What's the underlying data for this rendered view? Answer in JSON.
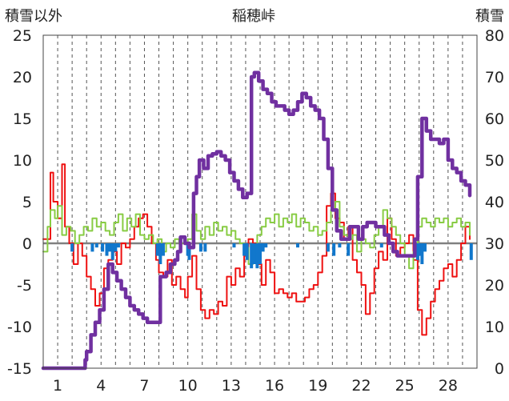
{
  "chart_data": {
    "type": "line",
    "title": "稲穂峠",
    "left_axis_label": "積雪以外",
    "right_axis_label": "積雪",
    "left_ylim": [
      -15,
      25
    ],
    "left_yticks": [
      25,
      20,
      15,
      10,
      5,
      0,
      -5,
      -10,
      -15
    ],
    "right_ylim": [
      0,
      80
    ],
    "right_yticks": [
      80,
      70,
      60,
      50,
      40,
      30,
      20,
      10,
      0
    ],
    "xlim": [
      0,
      30
    ],
    "x_tick_labels": [
      "1",
      "4",
      "7",
      "10",
      "13",
      "16",
      "19",
      "22",
      "25",
      "28"
    ],
    "x_tick_values": [
      1,
      4,
      7,
      10,
      13,
      16,
      19,
      22,
      25,
      28
    ],
    "grid": "vertical dashed lines",
    "colors": {
      "temperature": "#ee1111",
      "wind": "#88cc44",
      "precipitation": "#1177cc",
      "snow_depth": "#7030a0",
      "zero_line": "#808080",
      "grid": "#555555"
    },
    "series": [
      {
        "axis": "left",
        "x": [
          0.0,
          0.5,
          0.7,
          1.0,
          1.3,
          1.5,
          1.8,
          2.1,
          2.4,
          2.7,
          3.0,
          3.3,
          3.6,
          3.9,
          4.2,
          4.5,
          4.8,
          5.1,
          5.4,
          5.7,
          6.0,
          6.3,
          6.6,
          6.9,
          7.2,
          7.5,
          7.8,
          8.0,
          8.3,
          8.6,
          8.9,
          9.2,
          9.5,
          9.8,
          10.0,
          10.3,
          10.6,
          10.9,
          11.2,
          11.5,
          11.8,
          12.1,
          12.4,
          12.7,
          13.0,
          13.3,
          13.6,
          13.9,
          14.2,
          14.5,
          14.8,
          15.1,
          15.4,
          15.7,
          16.0,
          16.3,
          16.6,
          16.9,
          17.2,
          17.5,
          17.8,
          18.1,
          18.4,
          18.7,
          19.0,
          19.3,
          19.6,
          19.9,
          20.2,
          20.5,
          20.8,
          21.1,
          21.4,
          21.7,
          22.0,
          22.3,
          22.6,
          22.9,
          23.2,
          23.5,
          23.8,
          24.1,
          24.4,
          24.7,
          25.0,
          25.3,
          25.6,
          25.9,
          26.2,
          26.5,
          26.8,
          27.1,
          27.4,
          27.7,
          28.0,
          28.3,
          28.6,
          28.9,
          29.2,
          29.5
        ],
        "values": [
          0.5,
          8.5,
          5.0,
          3.0,
          9.5,
          2.0,
          0.0,
          -2.5,
          0.0,
          -1.5,
          -4.0,
          -5.5,
          -7.5,
          -6.0,
          -3.0,
          -2.0,
          -1.0,
          -2.5,
          0.0,
          -0.5,
          0.5,
          2.0,
          3.0,
          3.5,
          2.0,
          0.0,
          -2.0,
          -3.5,
          -4.0,
          -2.0,
          -5.0,
          -4.0,
          -5.5,
          -6.5,
          -4.0,
          -1.5,
          -5.5,
          -8.0,
          -9.0,
          -8.0,
          -8.5,
          -7.0,
          -7.5,
          -4.0,
          -5.0,
          -3.0,
          -4.0,
          -1.5,
          0.5,
          0.0,
          -2.5,
          -5.0,
          -2.0,
          -3.5,
          -6.0,
          -5.5,
          -6.0,
          -6.5,
          -6.0,
          -7.0,
          -7.0,
          -6.5,
          -5.5,
          -5.0,
          -3.5,
          -1.5,
          4.5,
          6.0,
          3.0,
          2.5,
          0.5,
          2.0,
          -2.0,
          -3.5,
          -5.0,
          -8.5,
          -6.0,
          -3.0,
          -1.0,
          -2.0,
          3.0,
          0.5,
          -1.5,
          -0.5,
          0.0,
          1.0,
          -2.0,
          -8.0,
          -11.0,
          -9.0,
          -7.0,
          -5.5,
          -4.5,
          -3.0,
          -2.5,
          -4.0,
          -2.0,
          0.0,
          2.0,
          0.5
        ]
      },
      {
        "axis": "left",
        "x": [
          0.0,
          0.3,
          0.5,
          0.8,
          1.0,
          1.3,
          1.6,
          1.9,
          2.2,
          2.5,
          2.8,
          3.1,
          3.4,
          3.7,
          4.0,
          4.3,
          4.6,
          4.9,
          5.2,
          5.5,
          5.8,
          6.1,
          6.4,
          6.7,
          7.0,
          7.3,
          7.6,
          7.9,
          8.2,
          8.5,
          8.8,
          9.1,
          9.4,
          9.7,
          10.0,
          10.3,
          10.6,
          10.9,
          11.2,
          11.5,
          11.8,
          12.1,
          12.4,
          12.7,
          13.0,
          13.3,
          13.6,
          13.9,
          14.2,
          14.5,
          14.8,
          15.1,
          15.4,
          15.7,
          16.0,
          16.3,
          16.6,
          16.9,
          17.2,
          17.5,
          17.8,
          18.1,
          18.4,
          18.7,
          19.0,
          19.3,
          19.6,
          19.9,
          20.2,
          20.5,
          20.8,
          21.1,
          21.4,
          21.7,
          22.0,
          22.3,
          22.6,
          22.9,
          23.2,
          23.5,
          23.8,
          24.1,
          24.4,
          24.7,
          25.0,
          25.3,
          25.6,
          25.9,
          26.2,
          26.5,
          26.8,
          27.1,
          27.4,
          27.7,
          28.0,
          28.3,
          28.6,
          28.9,
          29.2,
          29.5
        ],
        "values": [
          -1.0,
          2.0,
          4.0,
          3.0,
          4.5,
          1.0,
          2.0,
          1.5,
          0.0,
          1.0,
          2.0,
          1.5,
          3.0,
          2.0,
          2.5,
          1.5,
          1.0,
          2.5,
          3.5,
          1.5,
          3.0,
          2.0,
          3.5,
          1.0,
          0.5,
          1.0,
          0.0,
          0.5,
          -1.0,
          0.0,
          -0.5,
          0.5,
          0.0,
          0.0,
          0.5,
          3.5,
          1.5,
          0.5,
          2.0,
          1.0,
          2.5,
          1.5,
          2.0,
          1.0,
          1.5,
          0.5,
          0.0,
          -0.5,
          -2.5,
          -0.5,
          1.0,
          2.0,
          3.0,
          2.5,
          3.5,
          2.0,
          3.0,
          2.5,
          3.5,
          2.0,
          3.0,
          2.5,
          1.5,
          2.0,
          1.0,
          1.5,
          2.5,
          4.0,
          5.0,
          2.0,
          1.0,
          0.5,
          1.0,
          -1.0,
          0.5,
          0.0,
          -0.5,
          1.0,
          2.0,
          4.0,
          3.0,
          2.0,
          1.0,
          0.0,
          -1.5,
          -3.0,
          -1.0,
          2.0,
          3.0,
          2.5,
          2.0,
          3.0,
          2.5,
          3.0,
          2.0,
          2.5,
          3.0,
          2.0,
          2.5,
          1.0
        ]
      },
      {
        "axis": "left",
        "type": "bar",
        "x": [
          2.0,
          3.4,
          3.7,
          4.1,
          4.4,
          4.6,
          4.8,
          5.0,
          5.2,
          7.9,
          8.1,
          8.3,
          10.0,
          10.1,
          10.9,
          11.2,
          13.2,
          13.9,
          14.1,
          14.4,
          14.6,
          14.8,
          15.0,
          15.2,
          15.4,
          17.6,
          19.7,
          20.1,
          20.5,
          21.1,
          23.4,
          25.9,
          26.0,
          26.2,
          26.4,
          29.6
        ],
        "values": [
          -1.0,
          -1.0,
          -0.5,
          -1.0,
          -1.5,
          -1.0,
          -2.0,
          -1.0,
          -0.5,
          -1.5,
          -2.5,
          -1.5,
          -1.5,
          -2.0,
          -1.0,
          -1.0,
          -0.5,
          -1.5,
          -2.0,
          -3.0,
          -2.5,
          -3.0,
          -2.5,
          -1.0,
          -0.5,
          -0.5,
          -1.0,
          -1.5,
          -0.5,
          -1.5,
          -0.5,
          -2.0,
          -1.5,
          -2.5,
          -1.0,
          -2.0
        ]
      },
      {
        "axis": "right",
        "x": [
          0.0,
          2.8,
          2.9,
          3.0,
          3.3,
          3.6,
          3.9,
          4.2,
          4.5,
          4.8,
          5.1,
          5.4,
          5.7,
          6.0,
          6.3,
          6.6,
          6.9,
          7.2,
          7.5,
          7.8,
          8.1,
          8.2,
          8.5,
          8.8,
          9.1,
          9.3,
          9.5,
          9.8,
          10.1,
          10.4,
          10.6,
          10.8,
          11.1,
          11.4,
          11.7,
          12.0,
          12.3,
          12.6,
          12.9,
          13.2,
          13.5,
          13.8,
          14.1,
          14.4,
          14.6,
          14.9,
          15.2,
          15.5,
          15.8,
          16.1,
          16.4,
          16.7,
          17.0,
          17.3,
          17.6,
          17.9,
          18.2,
          18.5,
          18.8,
          19.1,
          19.4,
          19.7,
          20.0,
          20.3,
          20.6,
          20.9,
          21.2,
          21.5,
          21.8,
          22.1,
          22.4,
          22.7,
          23.0,
          23.3,
          23.6,
          23.9,
          24.2,
          24.5,
          24.8,
          25.1,
          25.4,
          25.7,
          25.9,
          26.2,
          26.5,
          26.8,
          27.1,
          27.4,
          27.7,
          28.0,
          28.3,
          28.6,
          28.9,
          29.2,
          29.5
        ],
        "values": [
          0.0,
          0.0,
          2.0,
          4.0,
          8.0,
          11.0,
          14.0,
          19.0,
          25.0,
          23.0,
          21.0,
          19.0,
          17.0,
          15.0,
          14.0,
          13.0,
          12.0,
          11.0,
          11.0,
          11.0,
          22.0,
          22.0,
          23.0,
          25.0,
          26.0,
          28.0,
          31.5,
          30.0,
          29.0,
          42.0,
          46.0,
          50.0,
          48.0,
          51.0,
          51.5,
          52.0,
          51.0,
          50.0,
          47.0,
          45.0,
          43.0,
          41.0,
          42.0,
          70.0,
          71.0,
          69.0,
          67.0,
          66.0,
          64.0,
          63.0,
          63.0,
          62.0,
          61.0,
          62.0,
          64.0,
          66.0,
          65.0,
          63.0,
          62.0,
          60.0,
          55.0,
          48.0,
          38.0,
          33.0,
          31.0,
          31.0,
          34.0,
          34.0,
          31.0,
          34.0,
          35.0,
          35.0,
          34.0,
          34.0,
          32.0,
          30.0,
          28.0,
          27.0,
          27.0,
          27.0,
          27.0,
          31.0,
          46.0,
          60.0,
          57.0,
          55.0,
          55.0,
          54.0,
          55.0,
          50.0,
          48.0,
          47.0,
          45.0,
          44.0,
          41.5
        ]
      }
    ]
  }
}
